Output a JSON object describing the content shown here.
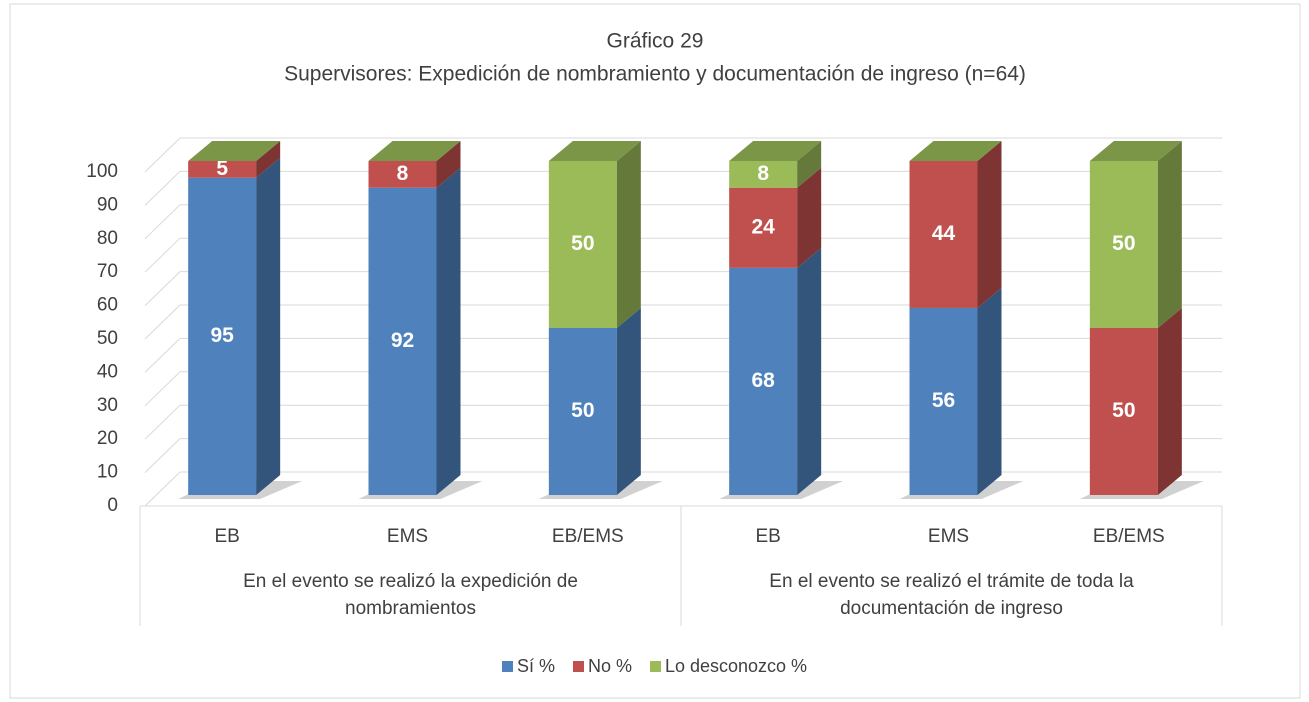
{
  "chart_data": {
    "type": "bar3d_stacked",
    "title": "Gráfico 29",
    "subtitle": "Supervisores: Expedición de nombramiento y documentación de ingreso (n=64)",
    "categories": [
      "EB",
      "EMS",
      "EB/EMS",
      "EB",
      "EMS",
      "EB/EMS"
    ],
    "groups": [
      "En el evento se realizó la expedición de nombramientos",
      "En el evento se realizó el trámite de toda la documentación de ingreso"
    ],
    "series": [
      {
        "name": "Sí %",
        "color": "#4f81bd",
        "values": [
          95,
          92,
          50,
          68,
          56,
          0
        ]
      },
      {
        "name": "No %",
        "color": "#c0504d",
        "values": [
          5,
          8,
          0,
          24,
          44,
          50
        ]
      },
      {
        "name": "Lo desconozco %",
        "color": "#9bbb59",
        "values": [
          0,
          0,
          50,
          8,
          0,
          50
        ]
      }
    ],
    "ylim": [
      0,
      100
    ],
    "yticks": [
      0,
      10,
      20,
      30,
      40,
      50,
      60,
      70,
      80,
      90,
      100
    ],
    "grid": true,
    "legend": "bottom"
  }
}
